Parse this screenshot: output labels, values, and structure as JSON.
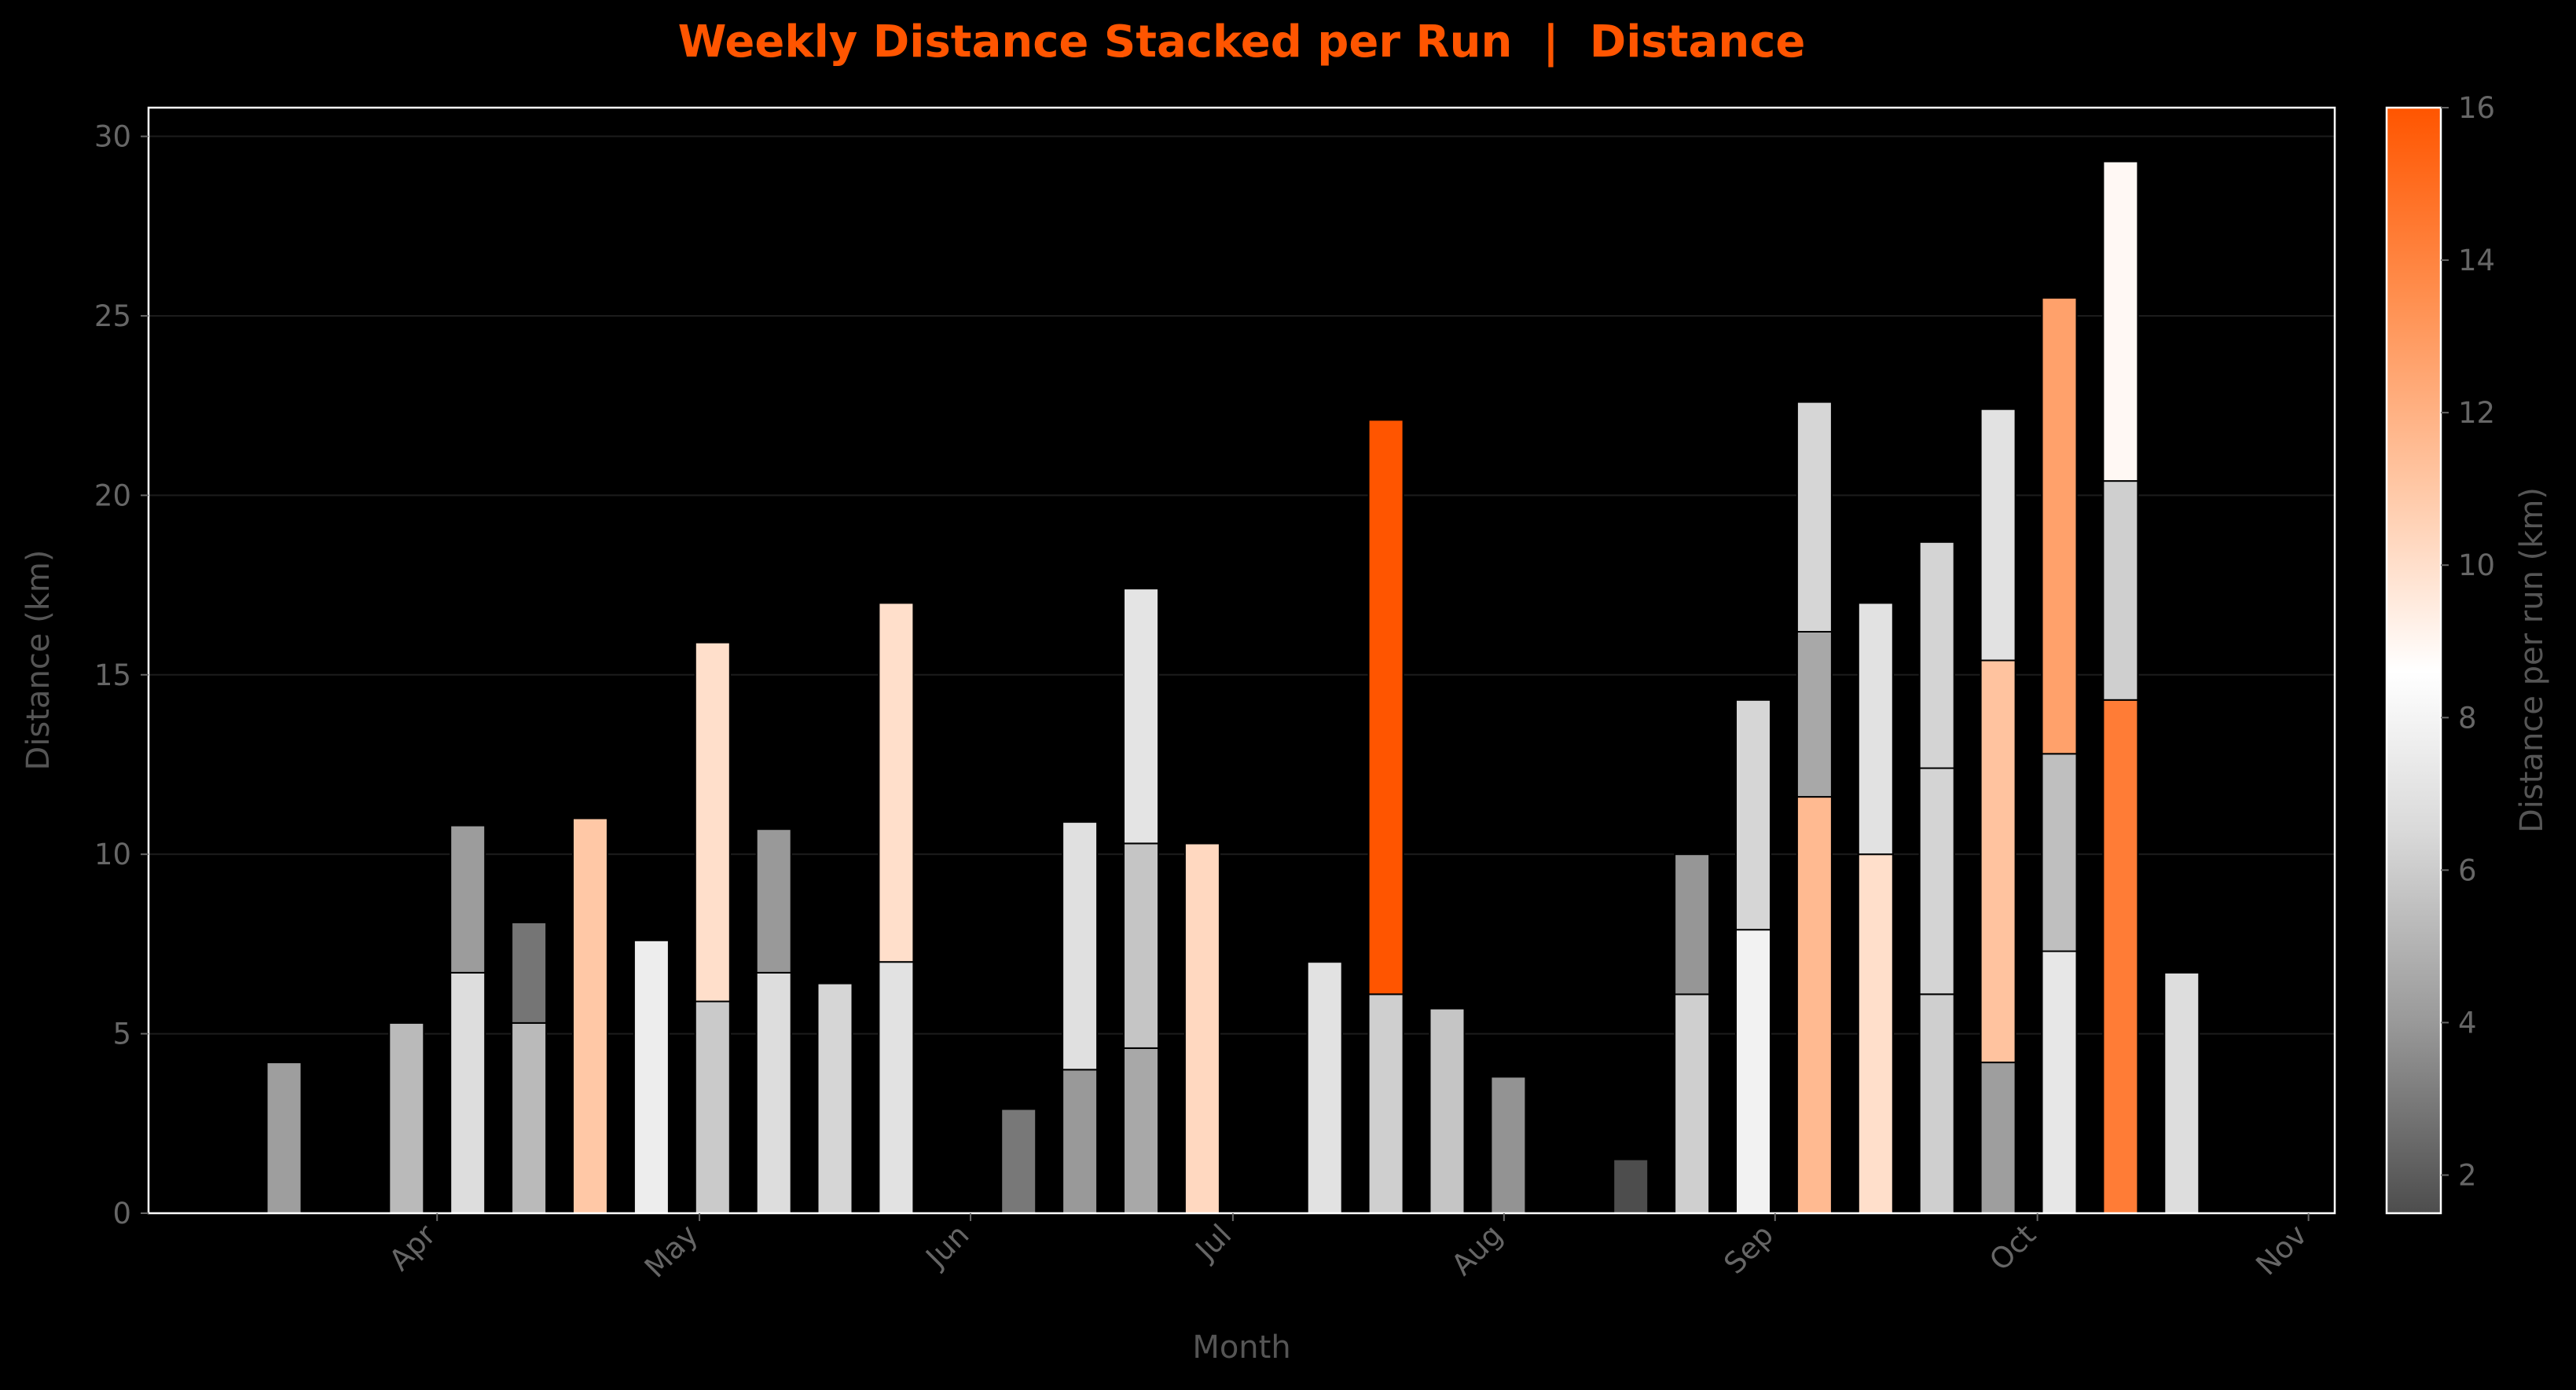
{
  "chart_data": {
    "type": "bar",
    "stacked": true,
    "title": "Weekly Distance Stacked per Run  |  Distance",
    "xlabel": "Month",
    "ylabel": "Distance (km)",
    "ylim": [
      0,
      30.8
    ],
    "yticks": [
      0,
      5,
      10,
      15,
      20,
      25,
      30
    ],
    "grid": true,
    "months": [
      {
        "label": "Apr",
        "date": "2024-04-01"
      },
      {
        "label": "May",
        "date": "2024-05-01"
      },
      {
        "label": "Jun",
        "date": "2024-06-01"
      },
      {
        "label": "Jul",
        "date": "2024-07-01"
      },
      {
        "label": "Aug",
        "date": "2024-08-01"
      },
      {
        "label": "Sep",
        "date": "2024-09-01"
      },
      {
        "label": "Oct",
        "date": "2024-10-01"
      },
      {
        "label": "Nov",
        "date": "2024-11-01"
      }
    ],
    "weeks": [
      {
        "week": "2024-03-11",
        "runs": [
          4.2
        ]
      },
      {
        "week": "2024-03-25",
        "runs": [
          5.3
        ]
      },
      {
        "week": "2024-04-01",
        "runs": [
          6.7,
          4.1
        ]
      },
      {
        "week": "2024-04-08",
        "runs": [
          5.3,
          2.8
        ]
      },
      {
        "week": "2024-04-15",
        "runs": [
          11.0
        ]
      },
      {
        "week": "2024-04-22",
        "runs": [
          7.6
        ]
      },
      {
        "week": "2024-04-29",
        "runs": [
          5.9,
          10.0
        ]
      },
      {
        "week": "2024-05-06",
        "runs": [
          6.7,
          4.0
        ]
      },
      {
        "week": "2024-05-13",
        "runs": [
          6.4
        ]
      },
      {
        "week": "2024-05-20",
        "runs": [
          7.0,
          10.0
        ]
      },
      {
        "week": "2024-06-03",
        "runs": [
          2.9
        ]
      },
      {
        "week": "2024-06-10",
        "runs": [
          4.0,
          6.9
        ]
      },
      {
        "week": "2024-06-17",
        "runs": [
          4.6,
          5.7,
          7.1
        ]
      },
      {
        "week": "2024-06-24",
        "runs": [
          10.3
        ]
      },
      {
        "week": "2024-07-08",
        "runs": [
          7.0
        ]
      },
      {
        "week": "2024-07-15",
        "runs": [
          6.1,
          16.0
        ]
      },
      {
        "week": "2024-07-22",
        "runs": [
          5.7
        ]
      },
      {
        "week": "2024-07-29",
        "runs": [
          3.8
        ]
      },
      {
        "week": "2024-08-12",
        "runs": [
          1.5
        ]
      },
      {
        "week": "2024-08-19",
        "runs": [
          6.1,
          3.9
        ]
      },
      {
        "week": "2024-08-26",
        "runs": [
          7.9,
          6.4
        ]
      },
      {
        "week": "2024-09-02",
        "runs": [
          11.6,
          4.6,
          6.4
        ]
      },
      {
        "week": "2024-09-09",
        "runs": [
          10.0,
          7.0
        ]
      },
      {
        "week": "2024-09-16",
        "runs": [
          6.1,
          6.3,
          6.3
        ]
      },
      {
        "week": "2024-09-23",
        "runs": [
          4.2,
          11.2,
          7.0
        ]
      },
      {
        "week": "2024-09-30",
        "runs": [
          7.3,
          5.5,
          12.7
        ]
      },
      {
        "week": "2024-10-07",
        "runs": [
          14.3,
          6.1,
          8.9
        ]
      },
      {
        "week": "2024-10-14",
        "runs": [
          6.7
        ]
      }
    ],
    "colorbar": {
      "label": "Distance per run (km)",
      "range": [
        1.5,
        16
      ],
      "ticks": [
        2,
        4,
        6,
        8,
        10,
        12,
        14,
        16
      ],
      "stops": [
        {
          "v": 1.5,
          "color": "#4d4d4d"
        },
        {
          "v": 4.0,
          "color": "#999999"
        },
        {
          "v": 6.5,
          "color": "#d9d9d9"
        },
        {
          "v": 8.6,
          "color": "#ffffff"
        },
        {
          "v": 11.0,
          "color": "#ffc8a6"
        },
        {
          "v": 13.5,
          "color": "#ff8f4f"
        },
        {
          "v": 16.0,
          "color": "#ff5500"
        }
      ]
    },
    "colors": {
      "background": "#000000",
      "title": "#ff5500",
      "axes_frame": "#ffffff",
      "grid": "#1c1c1c",
      "tick_text": "#666666",
      "label_text": "#555555",
      "segment_edge": "#000000"
    }
  }
}
